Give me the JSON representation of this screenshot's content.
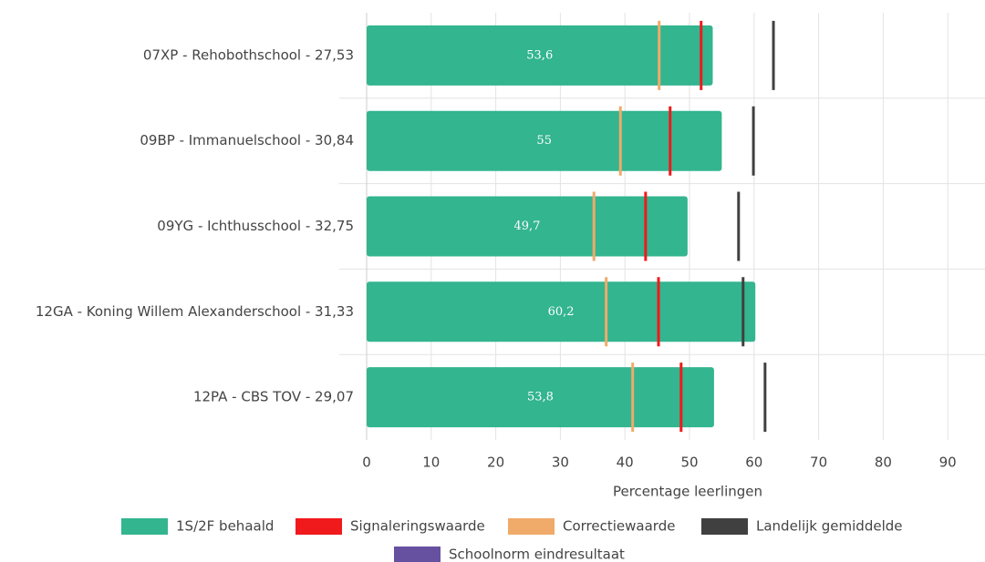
{
  "chart_data": {
    "type": "bar",
    "orientation": "horizontal",
    "categories": [
      "07XP - Rehobothschool - 27,53",
      "09BP - Immanuelschool - 30,84",
      "09YG - Ichthusschool - 32,75",
      "12GA - Koning Willem Alexanderschool - 31,33",
      "12PA - CBS TOV - 29,07"
    ],
    "x_label": "Percentage leerlingen",
    "xlim": [
      0,
      96
    ],
    "xticks": [
      0,
      10,
      20,
      30,
      40,
      50,
      60,
      70,
      80,
      90
    ],
    "grid": true,
    "series": [
      {
        "name": "1S/2F behaald",
        "color": "#33b58f",
        "mark": "bar",
        "values": [
          53.6,
          55,
          49.7,
          60.2,
          53.8
        ],
        "value_labels": [
          "53,6",
          "55",
          "49,7",
          "60,2",
          "53,8"
        ]
      },
      {
        "name": "Signaleringswaarde",
        "color": "#f0191c",
        "mark": "tick",
        "values": [
          51.8,
          47.0,
          43.2,
          45.2,
          48.7
        ]
      },
      {
        "name": "Correctiewaarde",
        "color": "#f0aa6a",
        "mark": "tick",
        "values": [
          45.3,
          39.3,
          35.2,
          37.1,
          41.2
        ]
      },
      {
        "name": "Landelijk gemiddelde",
        "color": "#404040",
        "mark": "tick",
        "values": [
          63.0,
          59.9,
          57.6,
          58.3,
          61.7
        ]
      },
      {
        "name": "Schoolnorm eindresultaat",
        "color": "#6650a0",
        "mark": "tick",
        "values": [
          null,
          null,
          null,
          null,
          null
        ]
      }
    ]
  }
}
